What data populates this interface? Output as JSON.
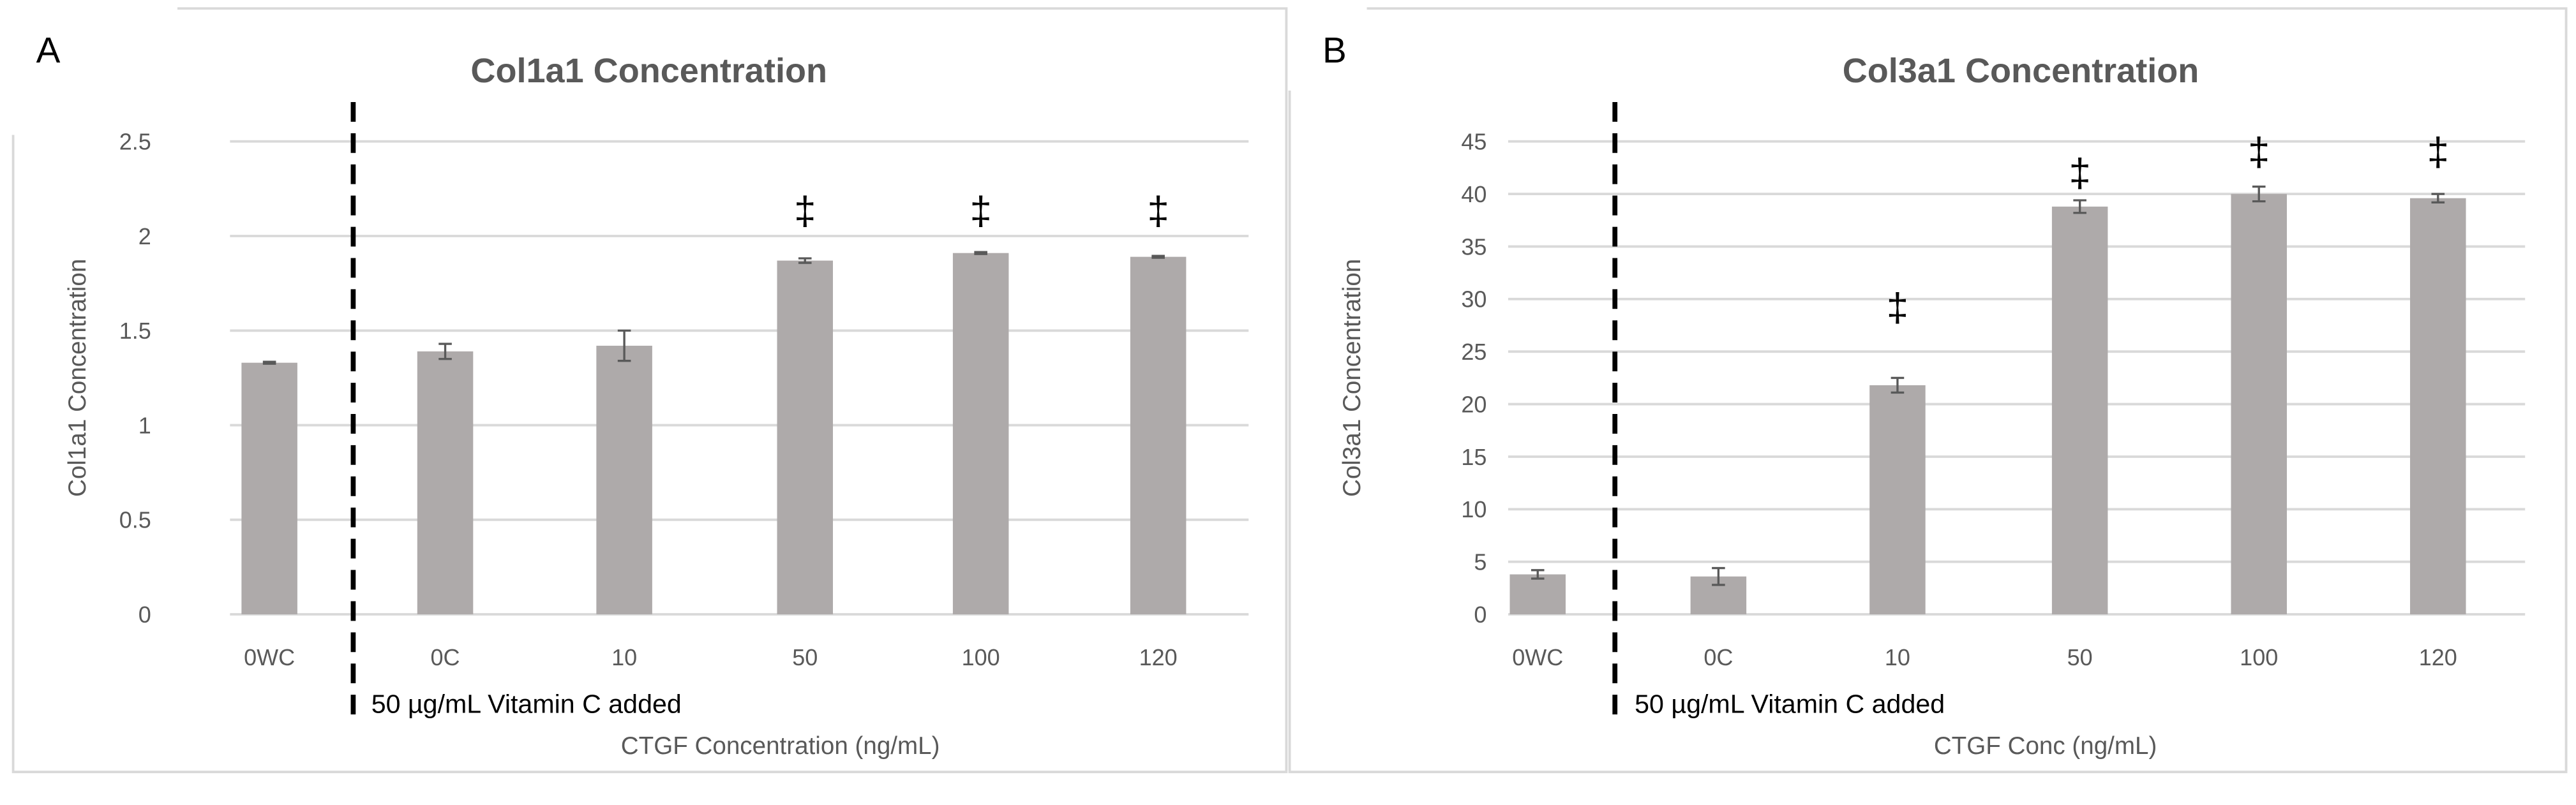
{
  "chart_data": [
    {
      "type": "bar",
      "panel_label": "A",
      "title": "Col1a1 Concentration",
      "xlabel": "CTGF Concentration (ng/mL)",
      "ylabel": "Col1a1 Concentration",
      "categories": [
        "0WC",
        "0C",
        "10",
        "50",
        "100",
        "120"
      ],
      "values": [
        1.33,
        1.39,
        1.42,
        1.87,
        1.91,
        1.89
      ],
      "errors": [
        0.005,
        0.04,
        0.08,
        0.012,
        0.005,
        0.005
      ],
      "ylim": [
        0,
        2.5
      ],
      "yticks": [
        "0",
        "0.5",
        "1",
        "1.5",
        "2",
        "2.5"
      ],
      "significance_marker": "‡",
      "significant": [
        false,
        false,
        false,
        true,
        true,
        true
      ],
      "marker_y": [
        null,
        null,
        null,
        2.15,
        2.15,
        2.15
      ],
      "annotation": "50 µg/mL Vitamin C added",
      "grid": true,
      "bar_color": "#aeaaaa"
    },
    {
      "type": "bar",
      "panel_label": "B",
      "title": "Col3a1 Concentration",
      "xlabel": "CTGF Conc (ng/mL)",
      "ylabel": "Col3a1 Concentration",
      "categories": [
        "0WC",
        "0C",
        "10",
        "50",
        "100",
        "120"
      ],
      "values": [
        3.8,
        3.6,
        21.8,
        38.8,
        40.0,
        39.6
      ],
      "errors": [
        0.4,
        0.8,
        0.7,
        0.6,
        0.7,
        0.4
      ],
      "ylim": [
        0,
        45
      ],
      "yticks": [
        "0",
        "5",
        "10",
        "15",
        "20",
        "25",
        "30",
        "35",
        "40",
        "45"
      ],
      "significance_marker": "‡",
      "significant": [
        false,
        false,
        true,
        true,
        true,
        true
      ],
      "marker_y": [
        null,
        null,
        29.5,
        42.3,
        44.3,
        44.3
      ],
      "annotation": "50 µg/mL Vitamin C added",
      "grid": true,
      "bar_color": "#aeaaaa"
    }
  ]
}
